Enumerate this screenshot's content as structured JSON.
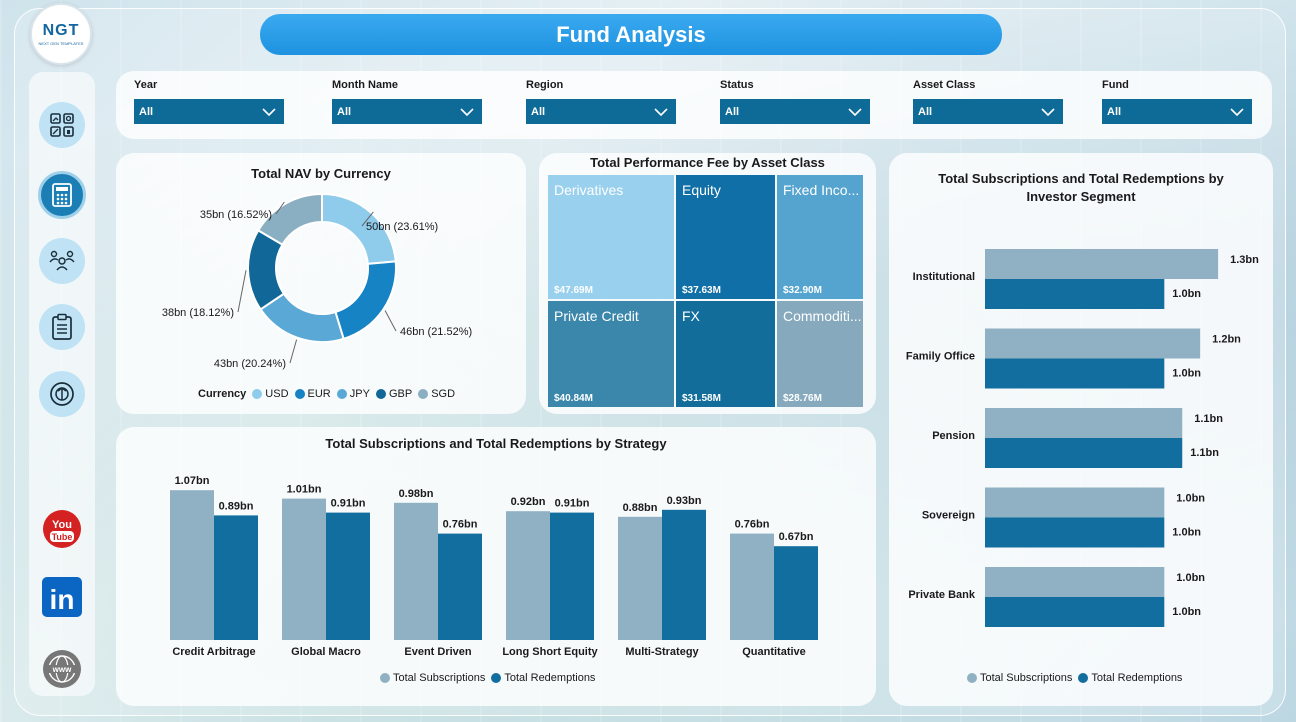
{
  "header": {
    "title": "Fund Analysis",
    "logo_text": "NGT",
    "logo_sub": "NEXT GEN TEMPLATES"
  },
  "sidebar": {
    "items": [
      {
        "name": "dashboard-icon",
        "active": false
      },
      {
        "name": "calculator-icon",
        "active": true
      },
      {
        "name": "users-icon",
        "active": false
      },
      {
        "name": "clipboard-icon",
        "active": false
      },
      {
        "name": "target-icon",
        "active": false
      }
    ],
    "social": [
      {
        "name": "youtube-icon",
        "label": "You",
        "label2": "Tube"
      },
      {
        "name": "linkedin-icon",
        "label": "in"
      },
      {
        "name": "globe-icon",
        "label": "www"
      }
    ]
  },
  "filters": [
    {
      "label": "Year",
      "value": "All"
    },
    {
      "label": "Month Name",
      "value": "All"
    },
    {
      "label": "Region",
      "value": "All"
    },
    {
      "label": "Status",
      "value": "All"
    },
    {
      "label": "Asset Class",
      "value": "All"
    },
    {
      "label": "Fund",
      "value": "All"
    }
  ],
  "colors": {
    "light": "#8fb1c3",
    "dark": "#126e9e",
    "sub": "#92b3c5",
    "red": "#118dcf"
  },
  "chart_data": [
    {
      "type": "pie",
      "title": "Total NAV by Currency",
      "legend_title": "Currency",
      "slices": [
        {
          "label": "USD",
          "value": 50,
          "percent": 23.61,
          "text": "50bn (23.61%)",
          "color": "#8fcbeb"
        },
        {
          "label": "EUR",
          "value": 46,
          "percent": 21.52,
          "text": "46bn (21.52%)",
          "color": "#1583c4"
        },
        {
          "label": "JPY",
          "value": 43,
          "percent": 20.24,
          "text": "43bn (20.24%)",
          "color": "#5aa8d6"
        },
        {
          "label": "GBP",
          "value": 38,
          "percent": 18.12,
          "text": "38bn (18.12%)",
          "color": "#116797"
        },
        {
          "label": "SGD",
          "value": 35,
          "percent": 16.52,
          "text": "35bn (16.52%)",
          "color": "#8aaec2"
        }
      ]
    },
    {
      "type": "treemap",
      "title": "Total Performance Fee by Asset Class",
      "items": [
        {
          "label": "Derivatives",
          "value": "$47.69M",
          "color": "#99d0ee"
        },
        {
          "label": "Equity",
          "value": "$37.63M",
          "color": "#0f6fa6"
        },
        {
          "label": "Fixed Inco...",
          "value": "$32.90M",
          "color": "#55a4cf"
        },
        {
          "label": "Private Credit",
          "value": "$40.84M",
          "color": "#3b86ab"
        },
        {
          "label": "FX",
          "value": "$31.58M",
          "color": "#136d9a"
        },
        {
          "label": "Commoditi...",
          "value": "$28.76M",
          "color": "#86a9bd"
        }
      ]
    },
    {
      "type": "bar",
      "title": "Total Subscriptions and Total Redemptions by Strategy",
      "categories": [
        "Credit Arbitrage",
        "Global Macro",
        "Event Driven",
        "Long Short Equity",
        "Multi-Strategy",
        "Quantitative"
      ],
      "series": [
        {
          "name": "Total Subscriptions",
          "values": [
            1.07,
            1.01,
            0.98,
            0.92,
            0.88,
            0.76
          ],
          "labels": [
            "1.07bn",
            "1.01bn",
            "0.98bn",
            "0.92bn",
            "0.88bn",
            "0.76bn"
          ],
          "color": "#8fb1c3"
        },
        {
          "name": "Total Redemptions",
          "values": [
            0.89,
            0.91,
            0.76,
            0.91,
            0.93,
            0.67
          ],
          "labels": [
            "0.89bn",
            "0.91bn",
            "0.76bn",
            "0.91bn",
            "0.93bn",
            "0.67bn"
          ],
          "color": "#126e9e"
        }
      ],
      "ylim": [
        0,
        1.15
      ]
    },
    {
      "type": "bar",
      "orientation": "horizontal",
      "title": "Total Subscriptions and Total Redemptions by Investor Segment",
      "categories": [
        "Institutional",
        "Family Office",
        "Pension",
        "Sovereign",
        "Private Bank"
      ],
      "series": [
        {
          "name": "Total Subscriptions",
          "values": [
            1.3,
            1.2,
            1.1,
            1.0,
            1.0
          ],
          "labels": [
            "1.3bn",
            "1.2bn",
            "1.1bn",
            "1.0bn",
            "1.0bn"
          ],
          "color": "#8fb1c3"
        },
        {
          "name": "Total Redemptions",
          "values": [
            1.0,
            1.0,
            1.1,
            1.0,
            1.0
          ],
          "labels": [
            "1.0bn",
            "1.0bn",
            "1.1bn",
            "1.0bn",
            "1.0bn"
          ],
          "color": "#126e9e"
        }
      ],
      "xlim": [
        0,
        1.45
      ]
    }
  ]
}
